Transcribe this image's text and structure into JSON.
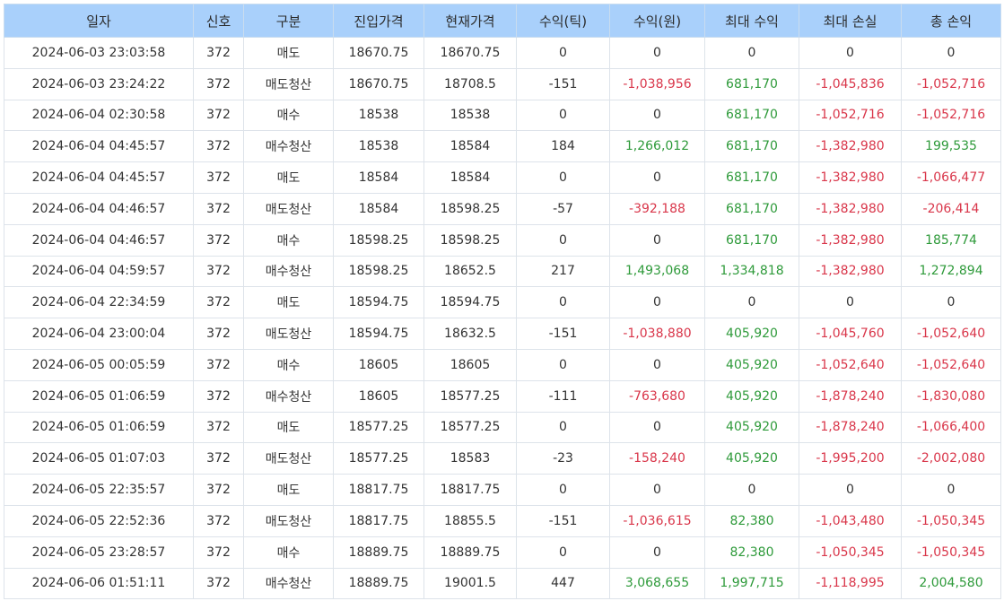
{
  "columns": [
    "일자",
    "신호",
    "구분",
    "진입가격",
    "현재가격",
    "수익(틱)",
    "수익(원)",
    "최대 수익",
    "최대 손실",
    "총 손익"
  ],
  "colors": {
    "header_bg": "#a9d0fb",
    "positive": "#2e9a3a",
    "negative": "#d9364a",
    "neutral": "#333333"
  },
  "rows": [
    [
      "2024-06-03 23:03:58",
      "372",
      "매도",
      "18670.75",
      "18670.75",
      "0",
      "0",
      "0",
      "0",
      "0"
    ],
    [
      "2024-06-03 23:24:22",
      "372",
      "매도청산",
      "18670.75",
      "18708.5",
      "-151",
      "-1,038,956",
      "681,170",
      "-1,045,836",
      "-1,052,716"
    ],
    [
      "2024-06-04 02:30:58",
      "372",
      "매수",
      "18538",
      "18538",
      "0",
      "0",
      "681,170",
      "-1,052,716",
      "-1,052,716"
    ],
    [
      "2024-06-04 04:45:57",
      "372",
      "매수청산",
      "18538",
      "18584",
      "184",
      "1,266,012",
      "681,170",
      "-1,382,980",
      "199,535"
    ],
    [
      "2024-06-04 04:45:57",
      "372",
      "매도",
      "18584",
      "18584",
      "0",
      "0",
      "681,170",
      "-1,382,980",
      "-1,066,477"
    ],
    [
      "2024-06-04 04:46:57",
      "372",
      "매도청산",
      "18584",
      "18598.25",
      "-57",
      "-392,188",
      "681,170",
      "-1,382,980",
      "-206,414"
    ],
    [
      "2024-06-04 04:46:57",
      "372",
      "매수",
      "18598.25",
      "18598.25",
      "0",
      "0",
      "681,170",
      "-1,382,980",
      "185,774"
    ],
    [
      "2024-06-04 04:59:57",
      "372",
      "매수청산",
      "18598.25",
      "18652.5",
      "217",
      "1,493,068",
      "1,334,818",
      "-1,382,980",
      "1,272,894"
    ],
    [
      "2024-06-04 22:34:59",
      "372",
      "매도",
      "18594.75",
      "18594.75",
      "0",
      "0",
      "0",
      "0",
      "0"
    ],
    [
      "2024-06-04 23:00:04",
      "372",
      "매도청산",
      "18594.75",
      "18632.5",
      "-151",
      "-1,038,880",
      "405,920",
      "-1,045,760",
      "-1,052,640"
    ],
    [
      "2024-06-05 00:05:59",
      "372",
      "매수",
      "18605",
      "18605",
      "0",
      "0",
      "405,920",
      "-1,052,640",
      "-1,052,640"
    ],
    [
      "2024-06-05 01:06:59",
      "372",
      "매수청산",
      "18605",
      "18577.25",
      "-111",
      "-763,680",
      "405,920",
      "-1,878,240",
      "-1,830,080"
    ],
    [
      "2024-06-05 01:06:59",
      "372",
      "매도",
      "18577.25",
      "18577.25",
      "0",
      "0",
      "405,920",
      "-1,878,240",
      "-1,066,400"
    ],
    [
      "2024-06-05 01:07:03",
      "372",
      "매도청산",
      "18577.25",
      "18583",
      "-23",
      "-158,240",
      "405,920",
      "-1,995,200",
      "-2,002,080"
    ],
    [
      "2024-06-05 22:35:57",
      "372",
      "매도",
      "18817.75",
      "18817.75",
      "0",
      "0",
      "0",
      "0",
      "0"
    ],
    [
      "2024-06-05 22:52:36",
      "372",
      "매도청산",
      "18817.75",
      "18855.5",
      "-151",
      "-1,036,615",
      "82,380",
      "-1,043,480",
      "-1,050,345"
    ],
    [
      "2024-06-05 23:28:57",
      "372",
      "매수",
      "18889.75",
      "18889.75",
      "0",
      "0",
      "82,380",
      "-1,050,345",
      "-1,050,345"
    ],
    [
      "2024-06-06 01:51:11",
      "372",
      "매수청산",
      "18889.75",
      "19001.5",
      "447",
      "3,068,655",
      "1,997,715",
      "-1,118,995",
      "2,004,580"
    ]
  ]
}
